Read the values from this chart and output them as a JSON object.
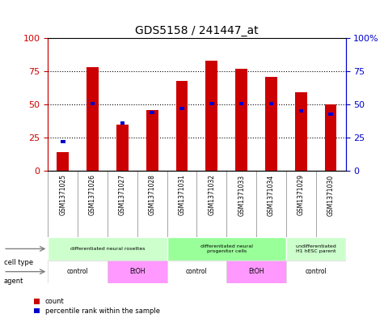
{
  "title": "GDS5158 / 241447_at",
  "samples": [
    "GSM1371025",
    "GSM1371026",
    "GSM1371027",
    "GSM1371028",
    "GSM1371031",
    "GSM1371032",
    "GSM1371033",
    "GSM1371034",
    "GSM1371029",
    "GSM1371030"
  ],
  "count_values": [
    14,
    78,
    35,
    46,
    68,
    83,
    77,
    71,
    59,
    50
  ],
  "percentile_values": [
    22,
    51,
    36,
    44,
    47,
    51,
    51,
    51,
    45,
    43
  ],
  "bar_color": "#cc0000",
  "percentile_color": "#0000cc",
  "ylim": [
    0,
    100
  ],
  "yticks": [
    0,
    25,
    50,
    75,
    100
  ],
  "grid_linestyle": "dotted",
  "cell_type_groups": [
    {
      "label": "differentiated neural rosettes",
      "start": 0,
      "end": 4,
      "color": "#ccffcc"
    },
    {
      "label": "differentiated neural\nprogenitor cells",
      "start": 4,
      "end": 8,
      "color": "#99ff99"
    },
    {
      "label": "undifferentiated\nH1 hESC parent",
      "start": 8,
      "end": 10,
      "color": "#ccffcc"
    }
  ],
  "agent_groups": [
    {
      "label": "control",
      "start": 0,
      "end": 2,
      "color": "#ffffff"
    },
    {
      "label": "EtOH",
      "start": 2,
      "end": 4,
      "color": "#ff99ff"
    },
    {
      "label": "control",
      "start": 4,
      "end": 6,
      "color": "#ffffff"
    },
    {
      "label": "EtOH",
      "start": 6,
      "end": 8,
      "color": "#ff99ff"
    },
    {
      "label": "control",
      "start": 8,
      "end": 10,
      "color": "#ffffff"
    }
  ],
  "cell_type_label": "cell type",
  "agent_label": "agent",
  "legend_count": "count",
  "legend_percentile": "percentile rank within the sample",
  "left_axis_color": "#cc0000",
  "right_axis_color": "#0000cc",
  "bg_color": "#f0f0f0",
  "plot_bg": "#ffffff"
}
